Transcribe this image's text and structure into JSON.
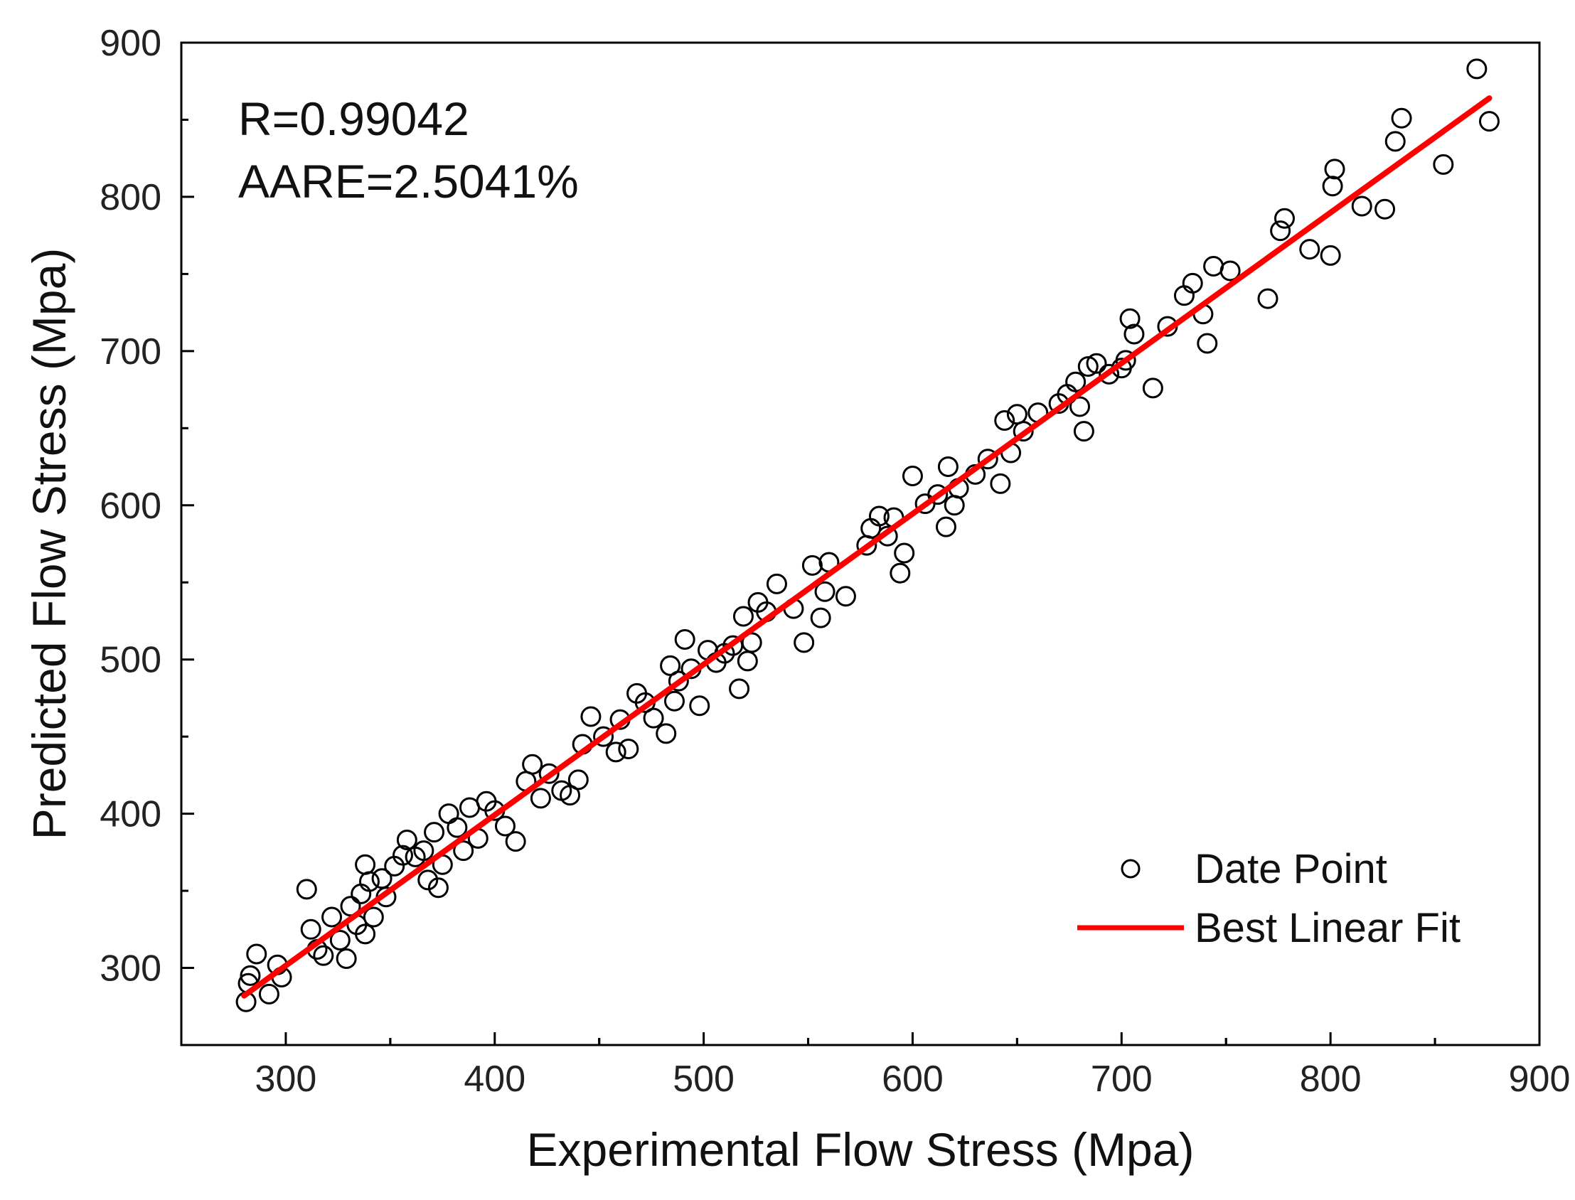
{
  "chart_data": {
    "type": "scatter",
    "title": "",
    "xlabel": "Experimental Flow Stress (Mpa)",
    "ylabel": "Predicted Flow Stress (Mpa)",
    "xlim": [
      250,
      900
    ],
    "ylim": [
      250,
      900
    ],
    "xticks": [
      300,
      400,
      500,
      600,
      700,
      800,
      900
    ],
    "yticks": [
      300,
      400,
      500,
      600,
      700,
      800,
      900
    ],
    "grid": false,
    "annotations": [
      "R=0.99042",
      "AARE=2.5041%"
    ],
    "legend": {
      "position": "bottom-right",
      "entries": [
        "Date Point",
        "Best Linear Fit"
      ]
    },
    "fit_line": {
      "name": "Best Linear Fit",
      "color": "#ff0000",
      "x": [
        280,
        876
      ],
      "y": [
        282,
        864
      ]
    },
    "series": [
      {
        "name": "Date Point",
        "marker": "open-circle",
        "points": [
          [
            281,
            278
          ],
          [
            282,
            290
          ],
          [
            283,
            295
          ],
          [
            286,
            309
          ],
          [
            292,
            283
          ],
          [
            296,
            302
          ],
          [
            298,
            294
          ],
          [
            310,
            351
          ],
          [
            312,
            325
          ],
          [
            315,
            312
          ],
          [
            318,
            308
          ],
          [
            322,
            333
          ],
          [
            326,
            318
          ],
          [
            329,
            306
          ],
          [
            331,
            340
          ],
          [
            334,
            328
          ],
          [
            336,
            348
          ],
          [
            338,
            367
          ],
          [
            338,
            322
          ],
          [
            340,
            356
          ],
          [
            342,
            333
          ],
          [
            346,
            358
          ],
          [
            348,
            346
          ],
          [
            352,
            366
          ],
          [
            356,
            373
          ],
          [
            358,
            383
          ],
          [
            362,
            372
          ],
          [
            366,
            376
          ],
          [
            368,
            357
          ],
          [
            371,
            388
          ],
          [
            373,
            352
          ],
          [
            375,
            367
          ],
          [
            378,
            400
          ],
          [
            382,
            391
          ],
          [
            385,
            376
          ],
          [
            388,
            404
          ],
          [
            392,
            384
          ],
          [
            396,
            408
          ],
          [
            400,
            402
          ],
          [
            405,
            392
          ],
          [
            410,
            382
          ],
          [
            415,
            421
          ],
          [
            418,
            432
          ],
          [
            422,
            410
          ],
          [
            426,
            426
          ],
          [
            432,
            415
          ],
          [
            436,
            412
          ],
          [
            440,
            422
          ],
          [
            442,
            445
          ],
          [
            446,
            463
          ],
          [
            452,
            450
          ],
          [
            458,
            440
          ],
          [
            460,
            461
          ],
          [
            464,
            442
          ],
          [
            468,
            478
          ],
          [
            472,
            472
          ],
          [
            476,
            462
          ],
          [
            482,
            452
          ],
          [
            484,
            496
          ],
          [
            486,
            473
          ],
          [
            488,
            486
          ],
          [
            491,
            513
          ],
          [
            494,
            494
          ],
          [
            498,
            470
          ],
          [
            502,
            506
          ],
          [
            506,
            498
          ],
          [
            510,
            504
          ],
          [
            514,
            509
          ],
          [
            517,
            481
          ],
          [
            519,
            528
          ],
          [
            521,
            499
          ],
          [
            523,
            511
          ],
          [
            526,
            537
          ],
          [
            530,
            531
          ],
          [
            535,
            549
          ],
          [
            543,
            533
          ],
          [
            548,
            511
          ],
          [
            552,
            561
          ],
          [
            556,
            527
          ],
          [
            558,
            544
          ],
          [
            560,
            563
          ],
          [
            568,
            541
          ],
          [
            578,
            574
          ],
          [
            580,
            585
          ],
          [
            584,
            593
          ],
          [
            588,
            580
          ],
          [
            591,
            592
          ],
          [
            594,
            556
          ],
          [
            596,
            569
          ],
          [
            600,
            619
          ],
          [
            606,
            601
          ],
          [
            612,
            607
          ],
          [
            616,
            586
          ],
          [
            617,
            625
          ],
          [
            620,
            600
          ],
          [
            622,
            611
          ],
          [
            630,
            620
          ],
          [
            636,
            630
          ],
          [
            642,
            614
          ],
          [
            644,
            655
          ],
          [
            647,
            634
          ],
          [
            650,
            659
          ],
          [
            653,
            648
          ],
          [
            660,
            660
          ],
          [
            670,
            666
          ],
          [
            674,
            672
          ],
          [
            678,
            680
          ],
          [
            680,
            664
          ],
          [
            682,
            648
          ],
          [
            684,
            690
          ],
          [
            688,
            692
          ],
          [
            694,
            685
          ],
          [
            700,
            689
          ],
          [
            702,
            694
          ],
          [
            704,
            721
          ],
          [
            706,
            711
          ],
          [
            715,
            676
          ],
          [
            722,
            716
          ],
          [
            730,
            736
          ],
          [
            734,
            744
          ],
          [
            739,
            724
          ],
          [
            741,
            705
          ],
          [
            744,
            755
          ],
          [
            752,
            752
          ],
          [
            770,
            734
          ],
          [
            776,
            778
          ],
          [
            778,
            786
          ],
          [
            790,
            766
          ],
          [
            800,
            762
          ],
          [
            801,
            807
          ],
          [
            802,
            818
          ],
          [
            815,
            794
          ],
          [
            826,
            792
          ],
          [
            831,
            836
          ],
          [
            834,
            851
          ],
          [
            854,
            821
          ],
          [
            870,
            883
          ],
          [
            876,
            849
          ]
        ]
      }
    ]
  }
}
